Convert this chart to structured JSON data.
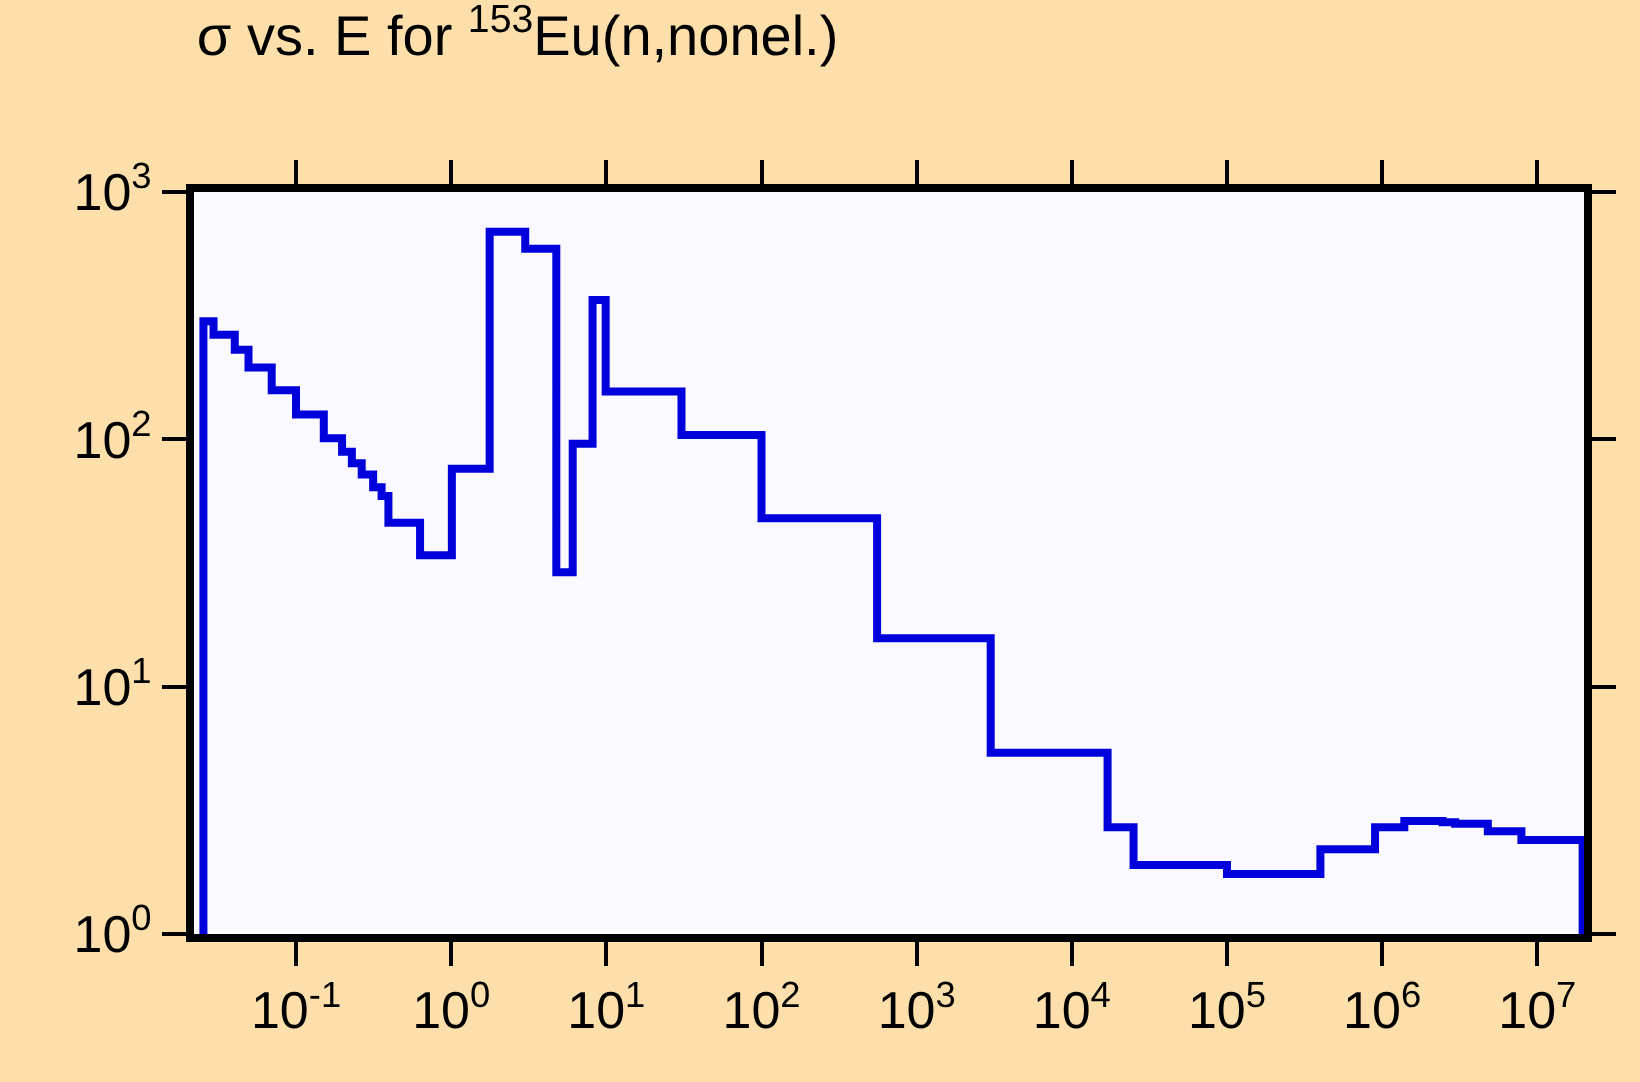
{
  "chart_data": {
    "type": "step",
    "title": "σ vs. E for $^{153}$Eu(n,nonel.)",
    "log": "xy",
    "grid": false,
    "marker": "none",
    "line_style": "solid",
    "xlim": [
      0.022,
      20000000.0
    ],
    "ylim": [
      1,
      1000
    ],
    "xticks": [
      {
        "value": 0.1,
        "label": "10$^{-1}$"
      },
      {
        "value": 1,
        "label": "10$^{0}$"
      },
      {
        "value": 10,
        "label": "10$^{1}$"
      },
      {
        "value": 100,
        "label": "10$^{2}$"
      },
      {
        "value": 1000,
        "label": "10$^{3}$"
      },
      {
        "value": 10000,
        "label": "10$^{4}$"
      },
      {
        "value": 100000,
        "label": "10$^{5}$"
      },
      {
        "value": 1000000,
        "label": "10$^{6}$"
      },
      {
        "value": 10000000,
        "label": "10$^{7}$"
      }
    ],
    "yticks": [
      {
        "value": 1,
        "label": "10$^{0}$"
      },
      {
        "value": 10,
        "label": "10$^{1}$"
      },
      {
        "value": 100,
        "label": "10$^{2}$"
      },
      {
        "value": 1000,
        "label": "10$^{3}$"
      }
    ],
    "series": [
      {
        "color": "#0000dd",
        "x": [
          0.0253,
          0.0253,
          0.0294,
          0.0403,
          0.0494,
          0.0697,
          0.1,
          0.151,
          0.198,
          0.229,
          0.265,
          0.314,
          0.356,
          0.394,
          0.63,
          1.01,
          1.77,
          3.0,
          4.76,
          6.07,
          8.15,
          9.9,
          30.5,
          100,
          556,
          3000,
          17000,
          25000,
          100000,
          400000,
          900000,
          1390000,
          2450000,
          2960000,
          4800000,
          7900000,
          19600000,
          19600000
        ],
        "values": [
          1,
          300,
          265,
          230,
          195,
          158,
          126,
          101,
          89,
          80,
          72,
          64,
          59,
          46,
          34,
          76,
          690,
          590,
          29,
          96,
          366,
          156,
          104,
          48,
          15.7,
          5.4,
          2.7,
          1.9,
          1.75,
          2.2,
          2.7,
          2.86,
          2.83,
          2.79,
          2.6,
          2.4,
          2.4,
          1
        ]
      }
    ]
  }
}
